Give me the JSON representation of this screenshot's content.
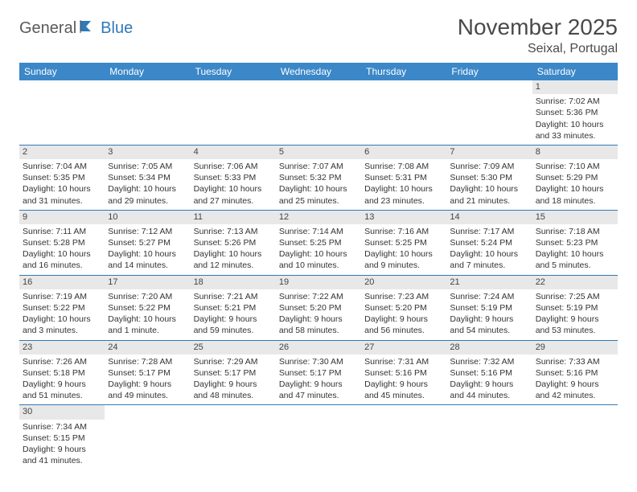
{
  "logo": {
    "text1": "General",
    "text2": "Blue"
  },
  "header": {
    "month_title": "November 2025",
    "location": "Seixal, Portugal"
  },
  "colors": {
    "header_bg": "#3b87c8",
    "header_text": "#ffffff",
    "cell_border": "#2f7ab8",
    "daynum_bg": "#e8e8e8",
    "logo_gray": "#5a5a5a",
    "logo_blue": "#2f7ab8"
  },
  "weekdays": [
    "Sunday",
    "Monday",
    "Tuesday",
    "Wednesday",
    "Thursday",
    "Friday",
    "Saturday"
  ],
  "weeks": [
    [
      null,
      null,
      null,
      null,
      null,
      null,
      {
        "n": "1",
        "sr": "Sunrise: 7:02 AM",
        "ss": "Sunset: 5:36 PM",
        "d1": "Daylight: 10 hours",
        "d2": "and 33 minutes."
      }
    ],
    [
      {
        "n": "2",
        "sr": "Sunrise: 7:04 AM",
        "ss": "Sunset: 5:35 PM",
        "d1": "Daylight: 10 hours",
        "d2": "and 31 minutes."
      },
      {
        "n": "3",
        "sr": "Sunrise: 7:05 AM",
        "ss": "Sunset: 5:34 PM",
        "d1": "Daylight: 10 hours",
        "d2": "and 29 minutes."
      },
      {
        "n": "4",
        "sr": "Sunrise: 7:06 AM",
        "ss": "Sunset: 5:33 PM",
        "d1": "Daylight: 10 hours",
        "d2": "and 27 minutes."
      },
      {
        "n": "5",
        "sr": "Sunrise: 7:07 AM",
        "ss": "Sunset: 5:32 PM",
        "d1": "Daylight: 10 hours",
        "d2": "and 25 minutes."
      },
      {
        "n": "6",
        "sr": "Sunrise: 7:08 AM",
        "ss": "Sunset: 5:31 PM",
        "d1": "Daylight: 10 hours",
        "d2": "and 23 minutes."
      },
      {
        "n": "7",
        "sr": "Sunrise: 7:09 AM",
        "ss": "Sunset: 5:30 PM",
        "d1": "Daylight: 10 hours",
        "d2": "and 21 minutes."
      },
      {
        "n": "8",
        "sr": "Sunrise: 7:10 AM",
        "ss": "Sunset: 5:29 PM",
        "d1": "Daylight: 10 hours",
        "d2": "and 18 minutes."
      }
    ],
    [
      {
        "n": "9",
        "sr": "Sunrise: 7:11 AM",
        "ss": "Sunset: 5:28 PM",
        "d1": "Daylight: 10 hours",
        "d2": "and 16 minutes."
      },
      {
        "n": "10",
        "sr": "Sunrise: 7:12 AM",
        "ss": "Sunset: 5:27 PM",
        "d1": "Daylight: 10 hours",
        "d2": "and 14 minutes."
      },
      {
        "n": "11",
        "sr": "Sunrise: 7:13 AM",
        "ss": "Sunset: 5:26 PM",
        "d1": "Daylight: 10 hours",
        "d2": "and 12 minutes."
      },
      {
        "n": "12",
        "sr": "Sunrise: 7:14 AM",
        "ss": "Sunset: 5:25 PM",
        "d1": "Daylight: 10 hours",
        "d2": "and 10 minutes."
      },
      {
        "n": "13",
        "sr": "Sunrise: 7:16 AM",
        "ss": "Sunset: 5:25 PM",
        "d1": "Daylight: 10 hours",
        "d2": "and 9 minutes."
      },
      {
        "n": "14",
        "sr": "Sunrise: 7:17 AM",
        "ss": "Sunset: 5:24 PM",
        "d1": "Daylight: 10 hours",
        "d2": "and 7 minutes."
      },
      {
        "n": "15",
        "sr": "Sunrise: 7:18 AM",
        "ss": "Sunset: 5:23 PM",
        "d1": "Daylight: 10 hours",
        "d2": "and 5 minutes."
      }
    ],
    [
      {
        "n": "16",
        "sr": "Sunrise: 7:19 AM",
        "ss": "Sunset: 5:22 PM",
        "d1": "Daylight: 10 hours",
        "d2": "and 3 minutes."
      },
      {
        "n": "17",
        "sr": "Sunrise: 7:20 AM",
        "ss": "Sunset: 5:22 PM",
        "d1": "Daylight: 10 hours",
        "d2": "and 1 minute."
      },
      {
        "n": "18",
        "sr": "Sunrise: 7:21 AM",
        "ss": "Sunset: 5:21 PM",
        "d1": "Daylight: 9 hours",
        "d2": "and 59 minutes."
      },
      {
        "n": "19",
        "sr": "Sunrise: 7:22 AM",
        "ss": "Sunset: 5:20 PM",
        "d1": "Daylight: 9 hours",
        "d2": "and 58 minutes."
      },
      {
        "n": "20",
        "sr": "Sunrise: 7:23 AM",
        "ss": "Sunset: 5:20 PM",
        "d1": "Daylight: 9 hours",
        "d2": "and 56 minutes."
      },
      {
        "n": "21",
        "sr": "Sunrise: 7:24 AM",
        "ss": "Sunset: 5:19 PM",
        "d1": "Daylight: 9 hours",
        "d2": "and 54 minutes."
      },
      {
        "n": "22",
        "sr": "Sunrise: 7:25 AM",
        "ss": "Sunset: 5:19 PM",
        "d1": "Daylight: 9 hours",
        "d2": "and 53 minutes."
      }
    ],
    [
      {
        "n": "23",
        "sr": "Sunrise: 7:26 AM",
        "ss": "Sunset: 5:18 PM",
        "d1": "Daylight: 9 hours",
        "d2": "and 51 minutes."
      },
      {
        "n": "24",
        "sr": "Sunrise: 7:28 AM",
        "ss": "Sunset: 5:17 PM",
        "d1": "Daylight: 9 hours",
        "d2": "and 49 minutes."
      },
      {
        "n": "25",
        "sr": "Sunrise: 7:29 AM",
        "ss": "Sunset: 5:17 PM",
        "d1": "Daylight: 9 hours",
        "d2": "and 48 minutes."
      },
      {
        "n": "26",
        "sr": "Sunrise: 7:30 AM",
        "ss": "Sunset: 5:17 PM",
        "d1": "Daylight: 9 hours",
        "d2": "and 47 minutes."
      },
      {
        "n": "27",
        "sr": "Sunrise: 7:31 AM",
        "ss": "Sunset: 5:16 PM",
        "d1": "Daylight: 9 hours",
        "d2": "and 45 minutes."
      },
      {
        "n": "28",
        "sr": "Sunrise: 7:32 AM",
        "ss": "Sunset: 5:16 PM",
        "d1": "Daylight: 9 hours",
        "d2": "and 44 minutes."
      },
      {
        "n": "29",
        "sr": "Sunrise: 7:33 AM",
        "ss": "Sunset: 5:16 PM",
        "d1": "Daylight: 9 hours",
        "d2": "and 42 minutes."
      }
    ],
    [
      {
        "n": "30",
        "sr": "Sunrise: 7:34 AM",
        "ss": "Sunset: 5:15 PM",
        "d1": "Daylight: 9 hours",
        "d2": "and 41 minutes."
      },
      null,
      null,
      null,
      null,
      null,
      null
    ]
  ]
}
